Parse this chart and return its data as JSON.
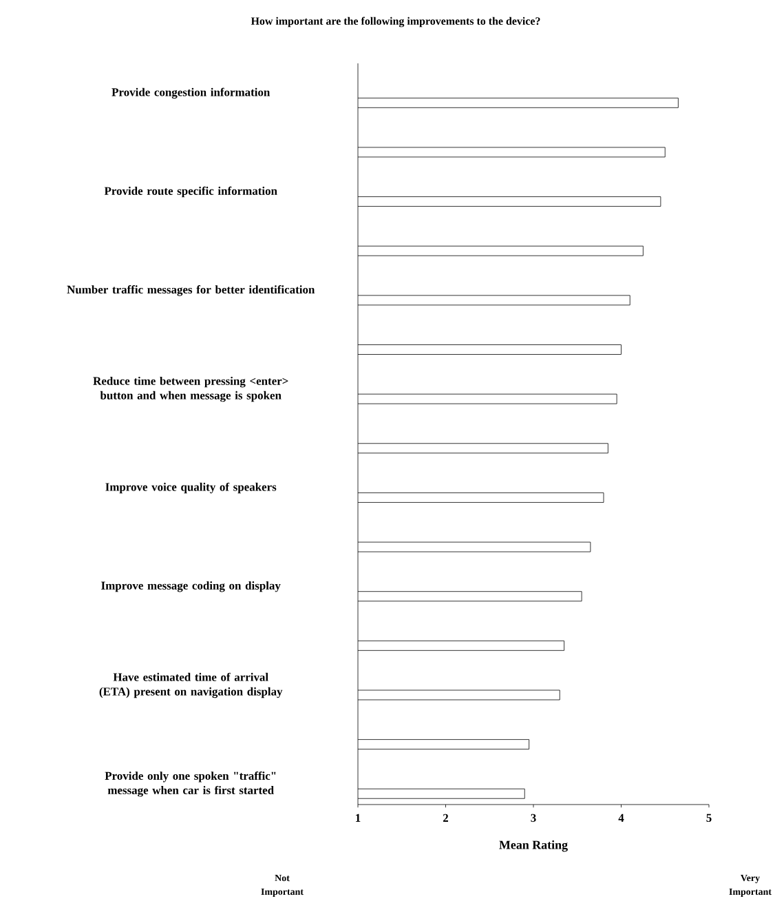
{
  "chart_data": {
    "type": "bar",
    "orientation": "horizontal",
    "title": "How important are the following improvements to the device?",
    "xlabel": "Mean Rating",
    "categories": [
      "Provide congestion information",
      null,
      "Provide route specific information",
      null,
      "Number traffic messages for better identification",
      null,
      "Reduce time between pressing <enter> button and when message is spoken",
      null,
      "Improve voice quality of speakers",
      null,
      "Improve message coding on display",
      null,
      "Have estimated time of arrival (ETA) present on navigation display",
      null,
      "Provide only one spoken \"traffic\" message when car is first started"
    ],
    "values": [
      4.65,
      4.5,
      4.45,
      4.25,
      4.1,
      4.0,
      3.95,
      3.85,
      3.8,
      3.65,
      3.55,
      3.35,
      3.3,
      2.95,
      2.9
    ],
    "color": "#ffffff",
    "xlim": [
      1,
      5
    ],
    "xticks": [
      1,
      2,
      3,
      4,
      5
    ],
    "annotations": [
      "Not Important",
      "Very Important"
    ],
    "grid": false
  }
}
